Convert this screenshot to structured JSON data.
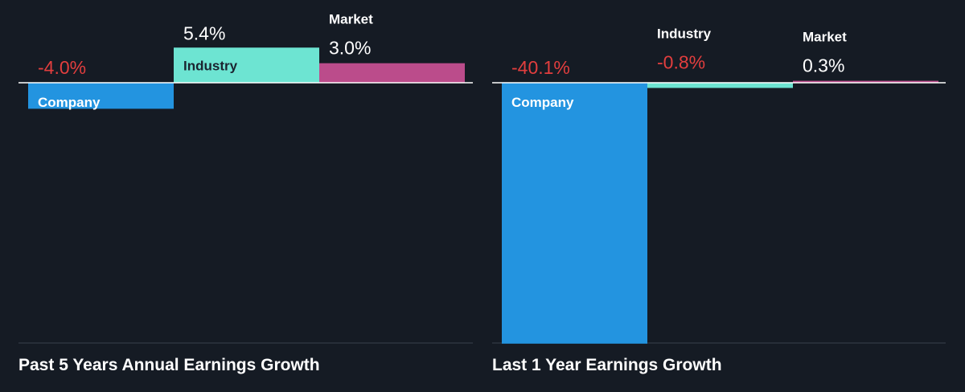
{
  "colors": {
    "background": "#151b24",
    "company": "#2394e0",
    "industry": "#6de4d2",
    "market": "#bb4c8b",
    "negative": "#e23e3e",
    "positive": "#ffffff",
    "axis": "#ffffff",
    "gridline": "#39414b"
  },
  "chart_data": [
    {
      "type": "bar",
      "title": "Past 5 Years Annual Earnings Growth",
      "categories": [
        "Company",
        "Industry",
        "Market"
      ],
      "values": [
        -4.0,
        5.4,
        3.0
      ],
      "value_labels": [
        "-4.0%",
        "5.4%",
        "3.0%"
      ],
      "unit": "%",
      "ylim": [
        -40.1,
        5.4
      ],
      "grid": false,
      "legend": "none"
    },
    {
      "type": "bar",
      "title": "Last 1 Year Earnings Growth",
      "categories": [
        "Company",
        "Industry",
        "Market"
      ],
      "values": [
        -40.1,
        -0.8,
        0.3
      ],
      "value_labels": [
        "-40.1%",
        "-0.8%",
        "0.3%"
      ],
      "unit": "%",
      "ylim": [
        -40.1,
        5.4
      ],
      "grid": false,
      "legend": "none"
    }
  ]
}
